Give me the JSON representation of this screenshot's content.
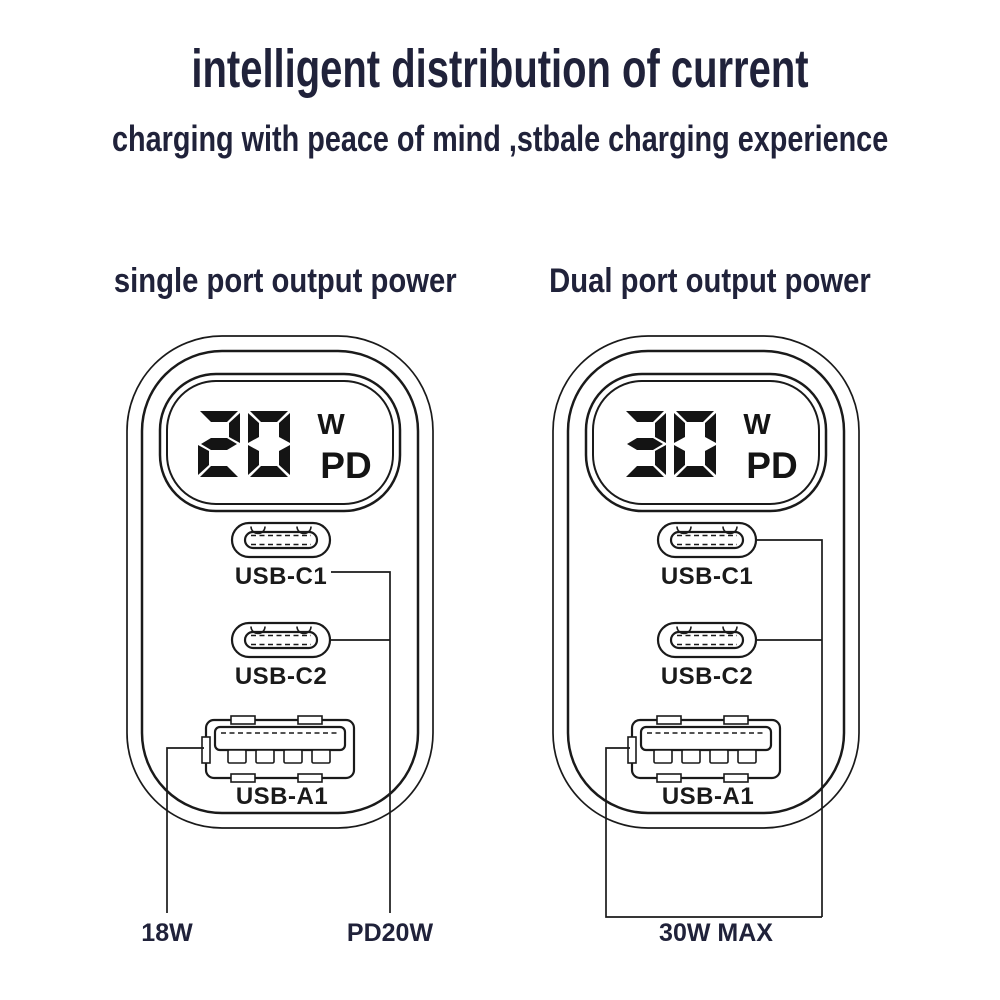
{
  "colors": {
    "ink": "#20223a",
    "line": "#1a1a1a",
    "display_digit": "#141414",
    "background": "#ffffff"
  },
  "header": {
    "title": "intelligent distribution of current",
    "subtitle": "charging with peace of mind ,stbale charging experience"
  },
  "icons": {
    "usb_c_port": "usb-c-port-icon",
    "usb_a_port": "usb-a-port-icon",
    "display": "seven-segment-display"
  },
  "sections": [
    {
      "heading": "single port output power",
      "display": {
        "watts": "20",
        "unit": "W",
        "mode": "PD"
      },
      "ports": [
        {
          "label": "USB-C1"
        },
        {
          "label": "USB-C2"
        },
        {
          "label": "USB-A1"
        }
      ],
      "annotations": [
        {
          "label": "18W"
        },
        {
          "label": "PD20W"
        }
      ]
    },
    {
      "heading": "Dual port output power",
      "display": {
        "watts": "30",
        "unit": "W",
        "mode": "PD"
      },
      "ports": [
        {
          "label": "USB-C1"
        },
        {
          "label": "USB-C2"
        },
        {
          "label": "USB-A1"
        }
      ],
      "annotations": [
        {
          "label": "30W MAX"
        }
      ]
    }
  ]
}
